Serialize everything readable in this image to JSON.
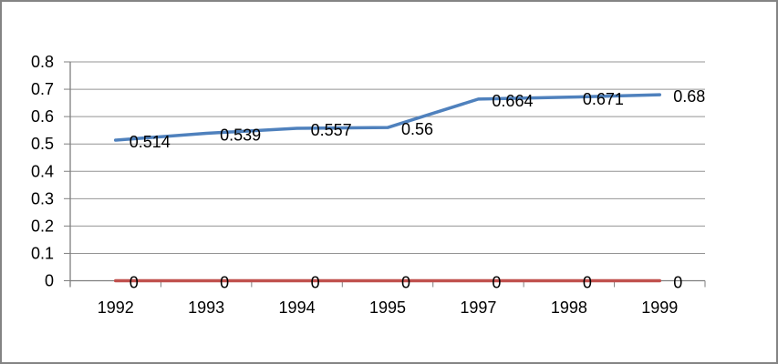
{
  "chart_data": {
    "type": "line",
    "title": "",
    "xlabel": "",
    "ylabel": "",
    "categories": [
      "1992",
      "1993",
      "1994",
      "1995",
      "1997",
      "1998",
      "1999"
    ],
    "series": [
      {
        "name": "series-values",
        "color": "#4f81bd",
        "values": [
          0.514,
          0.539,
          0.557,
          0.56,
          0.664,
          0.671,
          0.68
        ],
        "labels": [
          "0.514",
          "0.539",
          "0.557",
          "0.56",
          "0.664",
          "0.671",
          "0.68"
        ]
      },
      {
        "name": "series-zero",
        "color": "#c0504d",
        "values": [
          0,
          0,
          0,
          0,
          0,
          0,
          0
        ],
        "labels": [
          "0",
          "0",
          "0",
          "0",
          "0",
          "0",
          "0"
        ]
      }
    ],
    "ylim": [
      0,
      0.8
    ],
    "ytick_interval": 0.1,
    "ytick_labels": [
      "0",
      "0.1",
      "0.2",
      "0.3",
      "0.4",
      "0.5",
      "0.6",
      "0.7",
      "0.8"
    ],
    "grid": true,
    "legend": "none",
    "data_label_position": "right"
  },
  "colors": {
    "background": "#ffffff",
    "frame_border": "#848484",
    "gridline": "#949494",
    "axis_line": "#7f7f7f",
    "tick_mark": "#7f7f7f",
    "label_text": "#000000"
  }
}
